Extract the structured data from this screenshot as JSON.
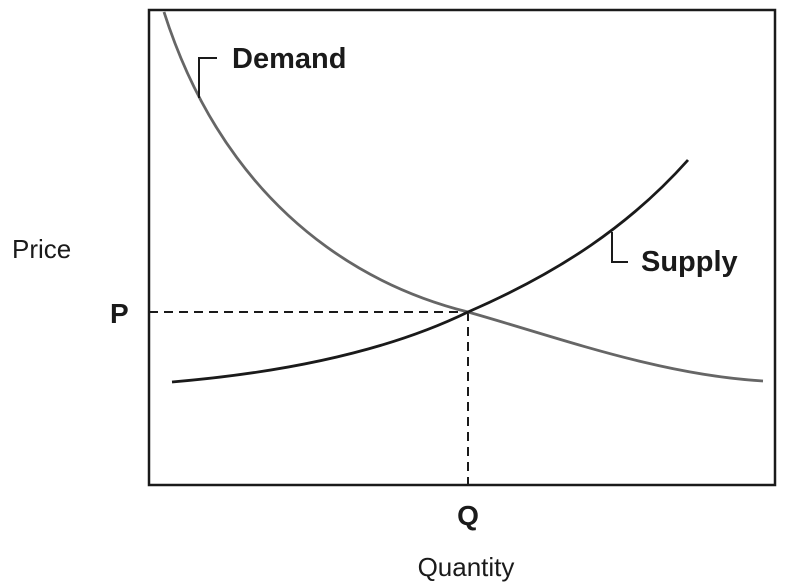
{
  "diagram": {
    "y_axis_label": "Price",
    "x_axis_label": "Quantity",
    "equilibrium_price_label": "P",
    "equilibrium_quantity_label": "Q",
    "curves": [
      {
        "id": "demand",
        "label": "Demand"
      },
      {
        "id": "supply",
        "label": "Supply"
      }
    ]
  }
}
